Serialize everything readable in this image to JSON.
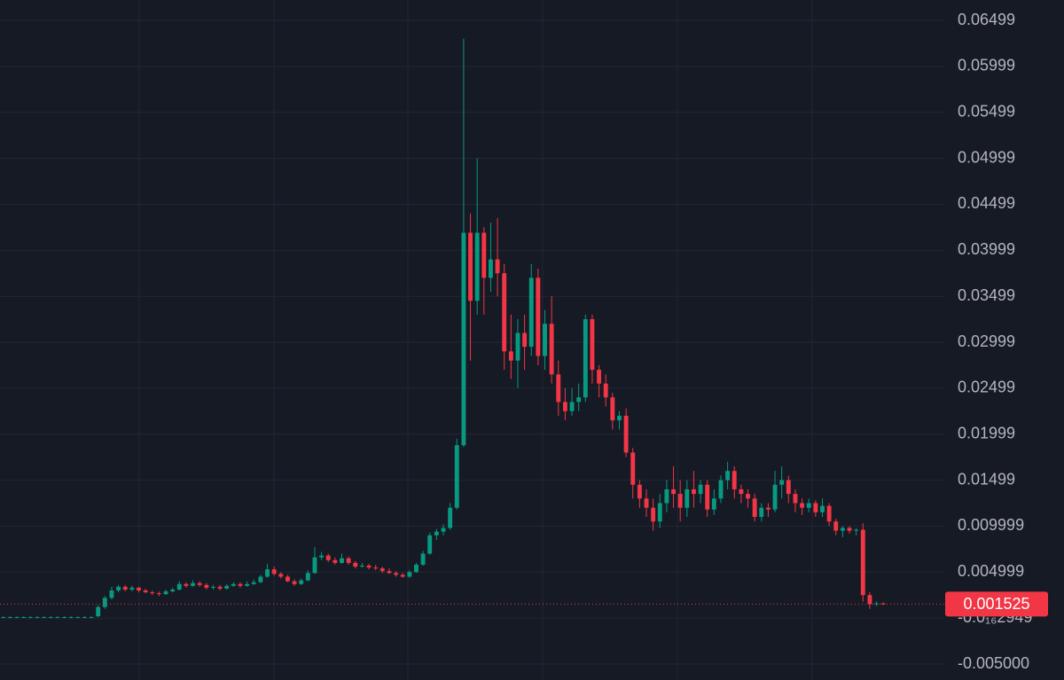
{
  "chart_data": {
    "type": "candlestick",
    "categories": [
      null,
      null,
      null,
      null,
      null,
      null,
      null,
      null,
      null,
      null,
      null,
      null,
      null,
      null,
      null,
      null,
      null,
      null,
      null,
      null,
      null,
      null,
      null,
      null,
      null,
      null,
      null,
      null,
      null,
      null,
      null,
      null,
      null,
      null,
      null,
      null,
      null,
      null,
      null,
      null,
      null,
      null,
      null,
      null,
      null,
      null,
      null,
      null,
      null,
      null,
      null,
      null,
      null,
      null,
      null,
      null,
      null,
      null,
      null,
      null,
      null,
      null,
      null,
      null,
      null,
      null,
      null,
      null,
      null,
      null,
      null,
      null,
      null,
      null,
      null,
      null,
      null,
      null,
      null,
      null,
      null,
      null,
      null,
      null,
      null,
      null,
      null,
      null,
      null,
      null,
      null,
      null,
      null,
      null,
      null,
      null,
      null,
      null,
      null,
      null,
      null,
      null,
      null,
      null,
      null,
      null,
      null,
      null,
      null,
      null,
      null,
      null,
      null,
      null,
      null,
      null,
      null,
      null,
      null,
      null,
      null,
      null,
      null,
      null,
      null,
      null,
      null,
      null,
      null,
      null,
      null
    ],
    "open": [
      0.0001,
      0.0001,
      0.0001,
      0.0001,
      0.0001,
      0.0001,
      0.0001,
      0.0001,
      0.0001,
      0.0001,
      0.0001,
      0.0001,
      0.0001,
      0.0001,
      0.0002,
      0.0012,
      0.0022,
      0.003,
      0.0034,
      0.0031,
      0.0033,
      0.003,
      0.0028,
      0.0027,
      0.0026,
      0.0029,
      0.0031,
      0.0037,
      0.0035,
      0.0038,
      0.0036,
      0.0033,
      0.0034,
      0.0032,
      0.0035,
      0.0037,
      0.0035,
      0.0037,
      0.0039,
      0.0045,
      0.0053,
      0.0048,
      0.0045,
      0.004,
      0.0037,
      0.0041,
      0.0049,
      0.0066,
      0.0068,
      0.0063,
      0.006,
      0.0065,
      0.006,
      0.0056,
      0.0057,
      0.0055,
      0.0054,
      0.0051,
      0.0049,
      0.0047,
      0.0045,
      0.005,
      0.0058,
      0.007,
      0.009,
      0.0094,
      0.0098,
      0.012,
      0.0188,
      0.0419,
      0.0345,
      0.0419,
      0.037,
      0.039,
      0.0375,
      0.029,
      0.028,
      0.031,
      0.0295,
      0.037,
      0.0285,
      0.032,
      0.0265,
      0.0235,
      0.0225,
      0.0235,
      0.024,
      0.0325,
      0.027,
      0.0255,
      0.024,
      0.0215,
      0.022,
      0.018,
      0.0145,
      0.013,
      0.012,
      0.0105,
      0.0125,
      0.014,
      0.0135,
      0.012,
      0.014,
      0.0135,
      0.0145,
      0.0118,
      0.013,
      0.015,
      0.016,
      0.014,
      0.0135,
      0.013,
      0.011,
      0.012,
      0.0118,
      0.0145,
      0.015,
      0.0135,
      0.0125,
      0.012,
      0.0125,
      0.0115,
      0.0122,
      0.0105,
      0.0095,
      0.0098,
      0.0095,
      0.0096,
      0.0025,
      0.0015,
      0.0016
    ],
    "high": [
      0.0002,
      0.0002,
      0.0002,
      0.0002,
      0.0002,
      0.0002,
      0.0002,
      0.0002,
      0.0002,
      0.0002,
      0.0002,
      0.0002,
      0.0002,
      0.0002,
      0.0014,
      0.0024,
      0.0034,
      0.0036,
      0.0036,
      0.0035,
      0.0034,
      0.0032,
      0.003,
      0.0029,
      0.0031,
      0.0033,
      0.004,
      0.0039,
      0.0041,
      0.004,
      0.0038,
      0.0036,
      0.0036,
      0.0037,
      0.0039,
      0.0039,
      0.004,
      0.0042,
      0.0047,
      0.0059,
      0.0056,
      0.005,
      0.0047,
      0.0042,
      0.0043,
      0.0052,
      0.0077,
      0.0072,
      0.007,
      0.0066,
      0.007,
      0.0067,
      0.0062,
      0.006,
      0.0059,
      0.0058,
      0.0056,
      0.0054,
      0.0051,
      0.0049,
      0.0052,
      0.006,
      0.0073,
      0.0093,
      0.0097,
      0.0102,
      0.0125,
      0.0195,
      0.063,
      0.044,
      0.05,
      0.0425,
      0.043,
      0.0435,
      0.0385,
      0.033,
      0.0325,
      0.033,
      0.0385,
      0.038,
      0.0335,
      0.035,
      0.028,
      0.025,
      0.025,
      0.0255,
      0.033,
      0.033,
      0.0275,
      0.0265,
      0.0245,
      0.0225,
      0.0228,
      0.0185,
      0.015,
      0.014,
      0.013,
      0.0135,
      0.015,
      0.0165,
      0.015,
      0.015,
      0.016,
      0.015,
      0.015,
      0.014,
      0.0155,
      0.017,
      0.0165,
      0.0145,
      0.014,
      0.0135,
      0.0125,
      0.0125,
      0.016,
      0.0165,
      0.0155,
      0.014,
      0.013,
      0.013,
      0.0128,
      0.013,
      0.0125,
      0.0108,
      0.01,
      0.01,
      0.0098,
      0.0103,
      0.0028,
      0.0018,
      0.0017
    ],
    "low": [
      0,
      0,
      0,
      0,
      0,
      0,
      0,
      0,
      0,
      0,
      0,
      0,
      0,
      0,
      0.0001,
      0.001,
      0.002,
      0.0028,
      0.0029,
      0.0029,
      0.0028,
      0.0027,
      0.0025,
      0.0024,
      0.0025,
      0.0028,
      0.003,
      0.0033,
      0.0034,
      0.0034,
      0.0031,
      0.0031,
      0.003,
      0.0031,
      0.0034,
      0.0033,
      0.0034,
      0.0036,
      0.0038,
      0.0044,
      0.0046,
      0.0043,
      0.0039,
      0.0035,
      0.0036,
      0.004,
      0.0048,
      0.0063,
      0.0061,
      0.0058,
      0.0059,
      0.0058,
      0.0054,
      0.0055,
      0.0053,
      0.0052,
      0.0049,
      0.0048,
      0.0045,
      0.0044,
      0.0044,
      0.0049,
      0.0057,
      0.0069,
      0.0085,
      0.009,
      0.0096,
      0.0118,
      0.0186,
      0.028,
      0.033,
      0.033,
      0.0355,
      0.035,
      0.027,
      0.026,
      0.025,
      0.027,
      0.0285,
      0.0275,
      0.027,
      0.0255,
      0.022,
      0.0215,
      0.022,
      0.0225,
      0.0235,
      0.0255,
      0.024,
      0.023,
      0.0205,
      0.0205,
      0.0175,
      0.013,
      0.012,
      0.011,
      0.0095,
      0.0098,
      0.0115,
      0.012,
      0.0105,
      0.011,
      0.012,
      0.0125,
      0.011,
      0.0112,
      0.0125,
      0.014,
      0.013,
      0.0125,
      0.012,
      0.0105,
      0.0105,
      0.011,
      0.0115,
      0.013,
      0.0125,
      0.0115,
      0.0112,
      0.0115,
      0.011,
      0.011,
      0.01,
      0.009,
      0.0088,
      0.0092,
      0.009,
      0.0018,
      0.001,
      0.0013,
      0.0014
    ],
    "close": [
      0.0001,
      0.0001,
      0.0001,
      0.0001,
      0.0001,
      0.0001,
      0.0001,
      0.0001,
      0.0001,
      0.0001,
      0.0001,
      0.0001,
      0.0001,
      0.0001,
      0.0012,
      0.0022,
      0.003,
      0.0034,
      0.0031,
      0.0033,
      0.003,
      0.0028,
      0.0027,
      0.0026,
      0.0029,
      0.0031,
      0.0037,
      0.0035,
      0.0038,
      0.0036,
      0.0033,
      0.0034,
      0.0032,
      0.0035,
      0.0037,
      0.0035,
      0.0037,
      0.0039,
      0.0045,
      0.0053,
      0.0048,
      0.0045,
      0.004,
      0.0037,
      0.0041,
      0.0049,
      0.0066,
      0.0068,
      0.0063,
      0.006,
      0.0065,
      0.006,
      0.0056,
      0.0057,
      0.0055,
      0.0054,
      0.0051,
      0.0049,
      0.0047,
      0.0045,
      0.005,
      0.0058,
      0.007,
      0.009,
      0.0094,
      0.0098,
      0.012,
      0.0188,
      0.0419,
      0.0345,
      0.0419,
      0.037,
      0.039,
      0.0375,
      0.029,
      0.028,
      0.031,
      0.0295,
      0.037,
      0.0285,
      0.032,
      0.0265,
      0.0235,
      0.0225,
      0.0235,
      0.024,
      0.0325,
      0.027,
      0.0255,
      0.024,
      0.0215,
      0.022,
      0.018,
      0.0145,
      0.013,
      0.012,
      0.0105,
      0.0125,
      0.014,
      0.0135,
      0.012,
      0.014,
      0.0135,
      0.0145,
      0.0118,
      0.013,
      0.015,
      0.016,
      0.014,
      0.0135,
      0.013,
      0.011,
      0.012,
      0.0118,
      0.0145,
      0.015,
      0.0135,
      0.0125,
      0.012,
      0.0125,
      0.0115,
      0.0122,
      0.0105,
      0.0095,
      0.0098,
      0.0095,
      0.0096,
      0.0025,
      0.0015,
      0.0016,
      0.001525
    ],
    "up_color": "#089981",
    "down_color": "#f23645",
    "ylim": [
      -0.006735,
      0.06721
    ],
    "yticks": [
      {
        "value": 0.06499,
        "label": "0.06499"
      },
      {
        "value": 0.05999,
        "label": "0.05999"
      },
      {
        "value": 0.05499,
        "label": "0.05499"
      },
      {
        "value": 0.04999,
        "label": "0.04999"
      },
      {
        "value": 0.04499,
        "label": "0.04499"
      },
      {
        "value": 0.03999,
        "label": "0.03999"
      },
      {
        "value": 0.03499,
        "label": "0.03499"
      },
      {
        "value": 0.02999,
        "label": "0.02999"
      },
      {
        "value": 0.02499,
        "label": "0.02499"
      },
      {
        "value": 0.01999,
        "label": "0.01999"
      },
      {
        "value": 0.01499,
        "label": "0.01499"
      },
      {
        "value": 0.009999,
        "label": "0.009999"
      },
      {
        "value": 0.004999,
        "label": "0.004999"
      },
      {
        "value": -2.949e-19,
        "label": "-0.0₁₆2949"
      },
      {
        "value": -0.005,
        "label": "-0.005000"
      }
    ],
    "grid": true,
    "last_price": {
      "value": 0.001525,
      "label": "0.001525"
    }
  }
}
